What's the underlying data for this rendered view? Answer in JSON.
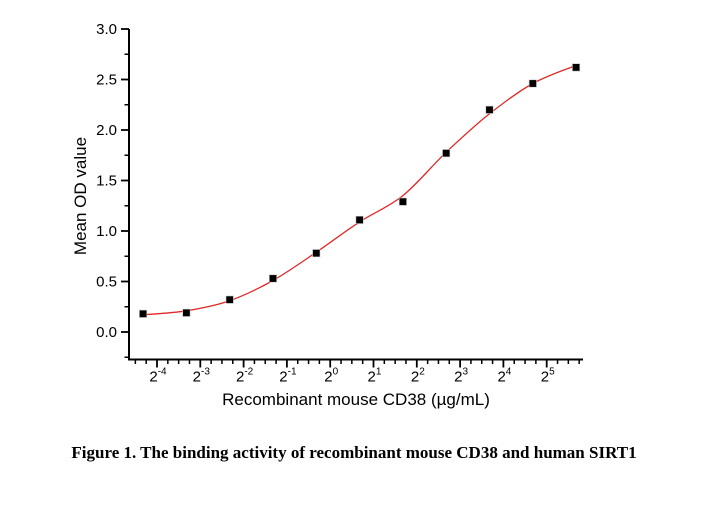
{
  "caption": "Figure 1. The binding activity of recombinant mouse CD38 and human SIRT1",
  "colors": {
    "background": "#ffffff",
    "axis": "#000000",
    "curve": "#e02929",
    "marker": "#000000",
    "marker_halo": "#c8c8c8",
    "text": "#000000"
  },
  "chart_data": {
    "type": "scatter",
    "title": "",
    "xlabel": "Recombinant mouse CD38 (µg/mL)",
    "ylabel": "Mean OD value",
    "x_scale": "log2",
    "x_tick_base": "2",
    "x_tick_exponents": [
      -4,
      -3,
      -2,
      -1,
      0,
      1,
      2,
      3,
      4,
      5
    ],
    "x_minor_step_log2": 0.25,
    "xlim_log2": [
      -4.65,
      5.84
    ],
    "y_tick_labels": [
      "0.0",
      "0.5",
      "1.0",
      "1.5",
      "2.0",
      "2.5",
      "3.0"
    ],
    "y_tick_values": [
      0.0,
      0.5,
      1.0,
      1.5,
      2.0,
      2.5,
      3.0
    ],
    "y_minor_values": [
      -0.25,
      0.25,
      0.75,
      1.25,
      1.75,
      2.25,
      2.75
    ],
    "ylim": [
      -0.27,
      3.0
    ],
    "grid": false,
    "legend": false,
    "series": [
      {
        "name": "Mean OD value data points",
        "kind": "scatter",
        "marker": "square",
        "x": [
          0.05,
          0.1,
          0.2,
          0.4,
          0.8,
          1.6,
          3.2,
          6.4,
          12.8,
          25.6,
          51.2
        ],
        "y": [
          0.18,
          0.19,
          0.32,
          0.53,
          0.78,
          1.11,
          1.29,
          1.77,
          2.2,
          2.46,
          2.62
        ]
      },
      {
        "name": "4PL fit curve",
        "kind": "line",
        "x": [
          0.05,
          0.1,
          0.2,
          0.4,
          0.8,
          1.6,
          3.2,
          6.4,
          12.8,
          25.6,
          51.2
        ],
        "y": [
          0.17,
          0.21,
          0.31,
          0.51,
          0.79,
          1.09,
          1.35,
          1.78,
          2.16,
          2.46,
          2.64
        ]
      }
    ]
  }
}
